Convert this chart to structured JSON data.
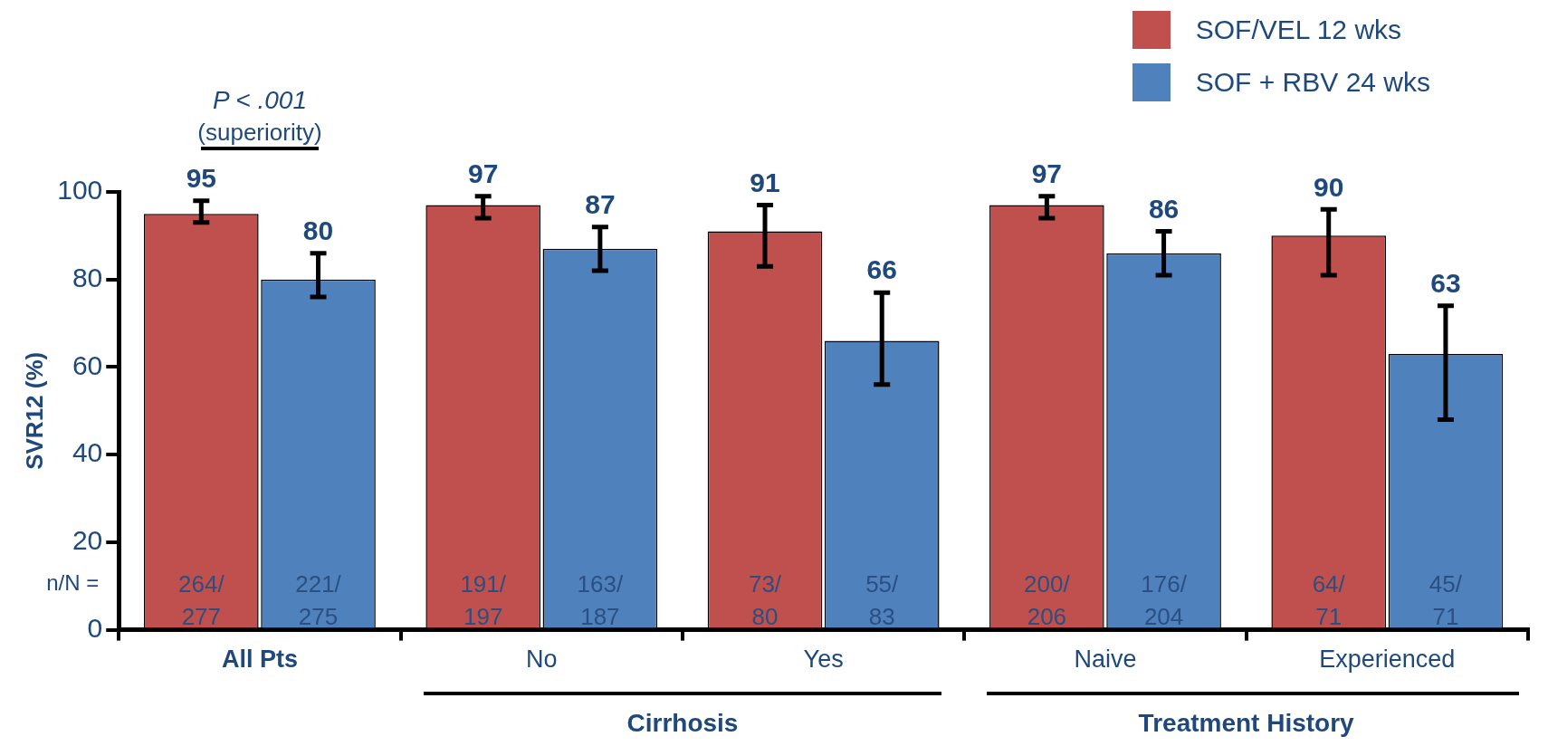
{
  "chart_data": {
    "type": "bar",
    "ylabel": "SVR12 (%)",
    "categories": [
      "All Pts",
      "No",
      "Yes",
      "Naive",
      "Experienced"
    ],
    "series": [
      {
        "name": "SOF/VEL 12 wks",
        "color": "#c0504d",
        "values": [
          95,
          97,
          91,
          97,
          90
        ],
        "errors": [
          [
            93,
            98
          ],
          [
            94,
            99
          ],
          [
            83,
            97
          ],
          [
            94,
            99
          ],
          [
            81,
            96
          ]
        ]
      },
      {
        "name": "SOF + RBV 24 wks",
        "color": "#4f81bd",
        "values": [
          80,
          87,
          66,
          86,
          63
        ],
        "errors": [
          [
            76,
            86
          ],
          [
            82,
            92
          ],
          [
            56,
            77
          ],
          [
            81,
            91
          ],
          [
            48,
            74
          ]
        ]
      }
    ],
    "ylim": [
      0,
      100
    ],
    "yticks": [
      0,
      20,
      40,
      60,
      80,
      100
    ],
    "grid": false,
    "legend": "top right",
    "data_labels": true,
    "annotations": [
      "P < .001",
      "(superiority)",
      "n/N =",
      "264/277",
      "221/275",
      "191/197",
      "163/187",
      "73/80",
      "55/83",
      "200/206",
      "176/204",
      "64/71",
      "45/71",
      "Cirrhosis",
      "Treatment History"
    ]
  }
}
